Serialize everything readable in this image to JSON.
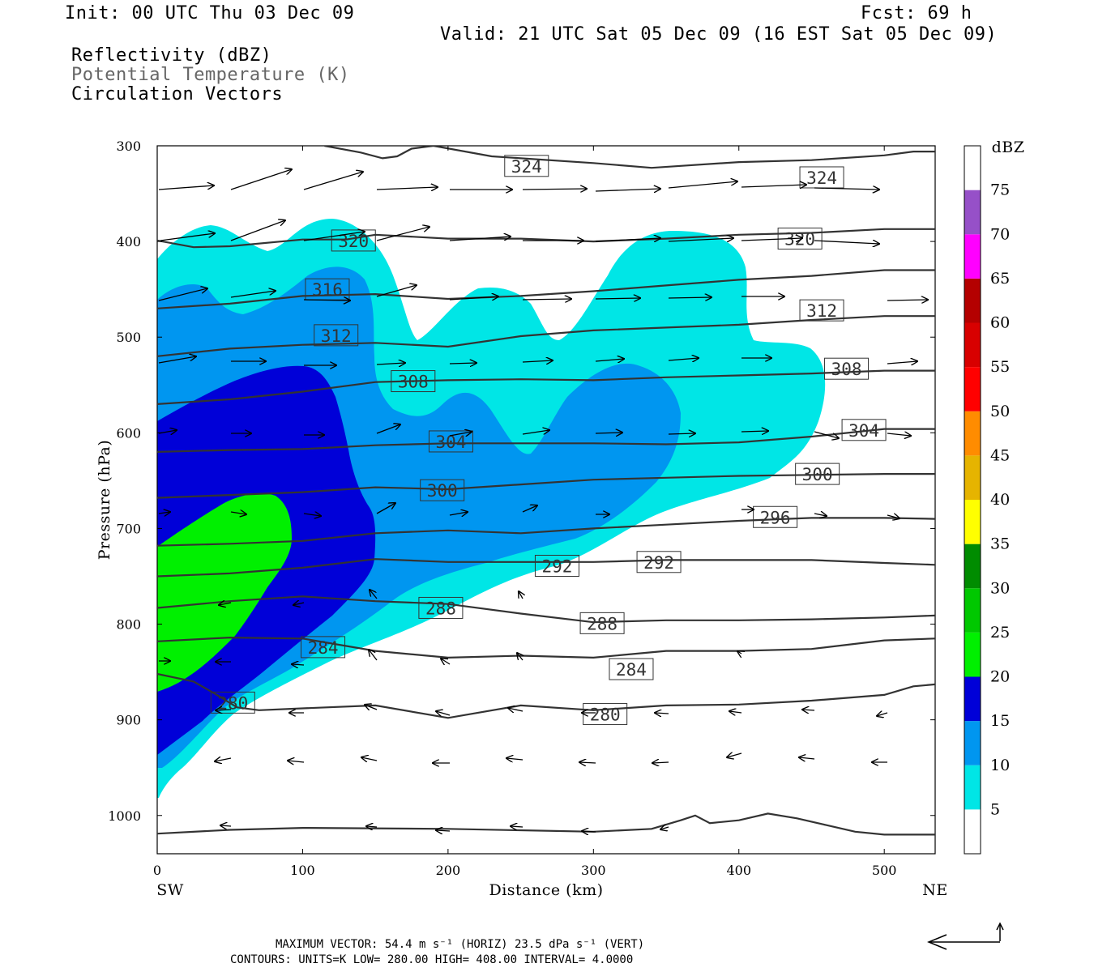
{
  "header": {
    "init": "Init: 00 UTC Thu 03 Dec 09",
    "fcst": "Fcst:   69 h",
    "valid": "Valid: 21 UTC Sat 05 Dec 09 (16 EST Sat 05 Dec 09)",
    "field1": "Reflectivity (dBZ)",
    "field2": "Potential Temperature (K)",
    "field3": "Circulation Vectors"
  },
  "footer": {
    "max_vector": "MAXIMUM VECTOR:  54.4 m s⁻¹ (HORIZ)        23.5 dPa s⁻¹ (VERT)",
    "contours": "CONTOURS:  UNITS=K  LOW=  280.00      HIGH=  408.00      INTERVAL=    4.0000"
  },
  "chart_data": {
    "type": "contour",
    "xlabel": "Distance (km)",
    "ylabel": "Pressure (hPa)",
    "xlim": [
      0,
      535
    ],
    "ylim": [
      300,
      1040
    ],
    "x_ticks": [
      "0",
      "100",
      "200",
      "300",
      "400",
      "500"
    ],
    "y_ticks": [
      "300",
      "400",
      "500",
      "600",
      "700",
      "800",
      "900",
      "1000"
    ],
    "x_end_labels": {
      "left": "SW",
      "right": "NE"
    },
    "colorbar": {
      "title": "dBZ",
      "levels": [
        5,
        10,
        15,
        20,
        25,
        30,
        35,
        40,
        45,
        50,
        55,
        60,
        65,
        70,
        75
      ],
      "labels": [
        "5",
        "10",
        "15",
        "20",
        "25",
        "30",
        "35",
        "40",
        "45",
        "50",
        "55",
        "60",
        "65",
        "70",
        "75"
      ],
      "colors": [
        "#ffffff",
        "#00e6e6",
        "#0096f0",
        "#0000d8",
        "#00f000",
        "#00c800",
        "#008c00",
        "#ffff00",
        "#e6b400",
        "#ff8c00",
        "#ff0000",
        "#d80000",
        "#b40000",
        "#ff00ff",
        "#9650c8",
        "#ffffff"
      ]
    },
    "theta_contours": [
      {
        "level": 280,
        "points": [
          [
            0,
            852
          ],
          [
            25,
            860
          ],
          [
            40,
            873
          ],
          [
            55,
            887
          ],
          [
            70,
            890
          ],
          [
            100,
            888
          ],
          [
            150,
            885
          ],
          [
            200,
            898
          ],
          [
            250,
            885
          ],
          [
            300,
            890
          ],
          [
            350,
            885
          ],
          [
            400,
            884
          ],
          [
            450,
            880
          ],
          [
            500,
            874
          ],
          [
            520,
            865
          ],
          [
            535,
            863
          ]
        ]
      },
      {
        "level": 284,
        "points": [
          [
            0,
            818
          ],
          [
            50,
            814
          ],
          [
            100,
            815
          ],
          [
            150,
            828
          ],
          [
            200,
            835
          ],
          [
            250,
            833
          ],
          [
            300,
            835
          ],
          [
            350,
            828
          ],
          [
            400,
            828
          ],
          [
            450,
            826
          ],
          [
            500,
            817
          ],
          [
            535,
            815
          ]
        ]
      },
      {
        "level": 288,
        "points": [
          [
            0,
            783
          ],
          [
            50,
            776
          ],
          [
            100,
            771
          ],
          [
            150,
            776
          ],
          [
            200,
            779
          ],
          [
            250,
            789
          ],
          [
            300,
            798
          ],
          [
            350,
            796
          ],
          [
            400,
            796
          ],
          [
            450,
            795
          ],
          [
            500,
            793
          ],
          [
            535,
            791
          ]
        ]
      },
      {
        "level": 292,
        "points": [
          [
            0,
            750
          ],
          [
            50,
            747
          ],
          [
            100,
            741
          ],
          [
            150,
            732
          ],
          [
            200,
            735
          ],
          [
            250,
            735
          ],
          [
            300,
            735
          ],
          [
            350,
            733
          ],
          [
            400,
            733
          ],
          [
            450,
            733
          ],
          [
            500,
            736
          ],
          [
            535,
            738
          ]
        ]
      },
      {
        "level": 296,
        "points": [
          [
            0,
            718
          ],
          [
            50,
            716
          ],
          [
            100,
            713
          ],
          [
            150,
            705
          ],
          [
            200,
            702
          ],
          [
            250,
            705
          ],
          [
            300,
            700
          ],
          [
            350,
            696
          ],
          [
            400,
            692
          ],
          [
            450,
            689
          ],
          [
            500,
            689
          ],
          [
            535,
            690
          ]
        ]
      },
      {
        "level": 300,
        "points": [
          [
            0,
            668
          ],
          [
            50,
            665
          ],
          [
            100,
            662
          ],
          [
            150,
            657
          ],
          [
            200,
            659
          ],
          [
            250,
            654
          ],
          [
            300,
            649
          ],
          [
            350,
            647
          ],
          [
            400,
            645
          ],
          [
            450,
            644
          ],
          [
            500,
            643
          ],
          [
            535,
            643
          ]
        ]
      },
      {
        "level": 304,
        "points": [
          [
            0,
            620
          ],
          [
            50,
            618
          ],
          [
            100,
            617
          ],
          [
            150,
            613
          ],
          [
            200,
            611
          ],
          [
            250,
            611
          ],
          [
            300,
            611
          ],
          [
            350,
            612
          ],
          [
            400,
            610
          ],
          [
            450,
            604
          ],
          [
            500,
            596
          ],
          [
            535,
            596
          ]
        ]
      },
      {
        "level": 308,
        "points": [
          [
            0,
            570
          ],
          [
            50,
            565
          ],
          [
            100,
            557
          ],
          [
            150,
            547
          ],
          [
            200,
            545
          ],
          [
            250,
            544
          ],
          [
            300,
            545
          ],
          [
            350,
            542
          ],
          [
            400,
            540
          ],
          [
            450,
            538
          ],
          [
            500,
            535
          ],
          [
            535,
            535
          ]
        ]
      },
      {
        "level": 312,
        "points": [
          [
            0,
            520
          ],
          [
            50,
            512
          ],
          [
            100,
            508
          ],
          [
            150,
            506
          ],
          [
            200,
            510
          ],
          [
            250,
            499
          ],
          [
            300,
            493
          ],
          [
            350,
            490
          ],
          [
            400,
            487
          ],
          [
            450,
            482
          ],
          [
            500,
            478
          ],
          [
            535,
            478
          ]
        ]
      },
      {
        "level": 316,
        "points": [
          [
            0,
            470
          ],
          [
            50,
            465
          ],
          [
            100,
            457
          ],
          [
            150,
            455
          ],
          [
            200,
            460
          ],
          [
            250,
            457
          ],
          [
            300,
            452
          ],
          [
            350,
            446
          ],
          [
            400,
            440
          ],
          [
            450,
            436
          ],
          [
            500,
            430
          ],
          [
            535,
            430
          ]
        ]
      },
      {
        "level": 320,
        "points": [
          [
            0,
            399
          ],
          [
            25,
            406
          ],
          [
            50,
            405
          ],
          [
            100,
            398
          ],
          [
            130,
            398
          ],
          [
            150,
            393
          ],
          [
            200,
            397
          ],
          [
            250,
            397
          ],
          [
            300,
            400
          ],
          [
            350,
            397
          ],
          [
            400,
            393
          ],
          [
            450,
            391
          ],
          [
            500,
            387
          ],
          [
            535,
            387
          ]
        ]
      },
      {
        "level": 324,
        "points": [
          [
            115,
            300
          ],
          [
            140,
            307
          ],
          [
            155,
            313
          ],
          [
            165,
            311
          ],
          [
            175,
            303
          ],
          [
            190,
            300
          ],
          [
            230,
            311
          ],
          [
            300,
            318
          ],
          [
            340,
            323
          ],
          [
            360,
            321
          ],
          [
            400,
            317
          ],
          [
            450,
            315
          ],
          [
            500,
            310
          ],
          [
            520,
            306
          ],
          [
            535,
            306
          ]
        ]
      },
      {
        "level": 280,
        "points": [
          [
            0,
            1019
          ],
          [
            50,
            1015
          ],
          [
            100,
            1013
          ],
          [
            200,
            1014
          ],
          [
            300,
            1017
          ],
          [
            340,
            1014
          ],
          [
            360,
            1005
          ],
          [
            370,
            1000
          ],
          [
            380,
            1008
          ],
          [
            400,
            1005
          ],
          [
            420,
            998
          ],
          [
            440,
            1003
          ],
          [
            460,
            1010
          ],
          [
            480,
            1017
          ],
          [
            500,
            1020
          ],
          [
            535,
            1020
          ]
        ]
      }
    ],
    "contour_labels": [
      {
        "text": "324",
        "x": 254,
        "p": 321
      },
      {
        "text": "324",
        "x": 457,
        "p": 333
      },
      {
        "text": "320",
        "x": 135,
        "p": 399
      },
      {
        "text": "320",
        "x": 442,
        "p": 397
      },
      {
        "text": "316",
        "x": 117,
        "p": 450
      },
      {
        "text": "312",
        "x": 457,
        "p": 472
      },
      {
        "text": "312",
        "x": 123,
        "p": 498
      },
      {
        "text": "308",
        "x": 176,
        "p": 546
      },
      {
        "text": "308",
        "x": 474,
        "p": 533
      },
      {
        "text": "304",
        "x": 202,
        "p": 609
      },
      {
        "text": "304",
        "x": 486,
        "p": 597
      },
      {
        "text": "300",
        "x": 196,
        "p": 660
      },
      {
        "text": "300",
        "x": 454,
        "p": 643
      },
      {
        "text": "296",
        "x": 425,
        "p": 688
      },
      {
        "text": "292",
        "x": 275,
        "p": 739
      },
      {
        "text": "292",
        "x": 345,
        "p": 735
      },
      {
        "text": "288",
        "x": 195,
        "p": 783
      },
      {
        "text": "288",
        "x": 306,
        "p": 799
      },
      {
        "text": "284",
        "x": 114,
        "p": 824
      },
      {
        "text": "284",
        "x": 326,
        "p": 847
      },
      {
        "text": "280",
        "x": 52,
        "p": 882
      },
      {
        "text": "280",
        "x": 308,
        "p": 894
      }
    ]
  }
}
